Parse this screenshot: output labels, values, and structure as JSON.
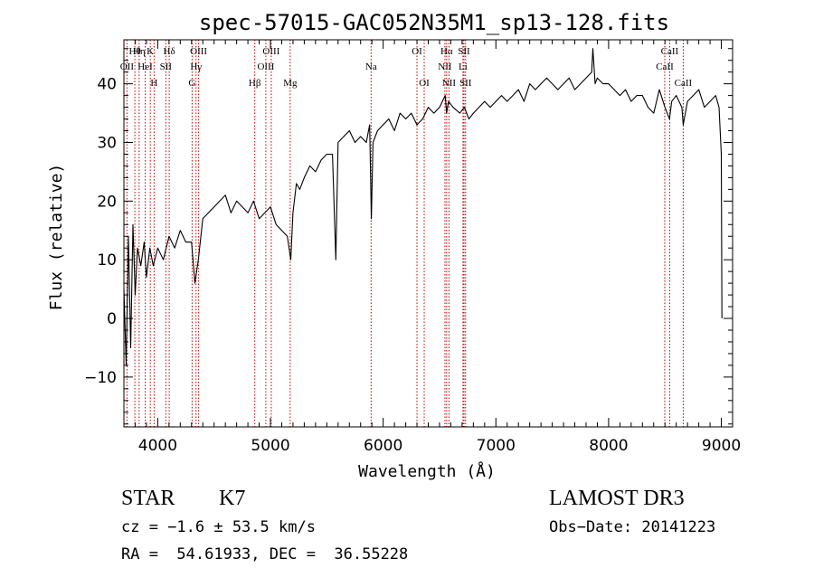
{
  "chart_data": {
    "type": "line",
    "title": "spec-57015-GAC052N35M1_sp13-128.fits",
    "xlabel": "Wavelength (Å)",
    "ylabel": "Flux (relative)",
    "xlim": [
      3700,
      9100
    ],
    "ylim": [
      -18.5,
      47.5
    ],
    "xticks": [
      4000,
      5000,
      6000,
      7000,
      8000,
      9000
    ],
    "yticks": [
      -10,
      0,
      10,
      20,
      30,
      40
    ],
    "x_minor_step": 100,
    "y_minor_step": 2,
    "grid": false,
    "series": [
      {
        "name": "flux",
        "x": [
          3700,
          3720,
          3740,
          3760,
          3780,
          3800,
          3820,
          3850,
          3880,
          3900,
          3930,
          3960,
          4000,
          4050,
          4100,
          4150,
          4200,
          4250,
          4300,
          4330,
          4360,
          4400,
          4450,
          4500,
          4550,
          4600,
          4650,
          4700,
          4750,
          4800,
          4850,
          4900,
          4950,
          5000,
          5050,
          5100,
          5150,
          5180,
          5200,
          5230,
          5260,
          5300,
          5350,
          5400,
          5450,
          5500,
          5550,
          5580,
          5600,
          5650,
          5700,
          5750,
          5800,
          5850,
          5880,
          5895,
          5910,
          5950,
          6000,
          6050,
          6100,
          6150,
          6200,
          6250,
          6300,
          6350,
          6400,
          6450,
          6500,
          6550,
          6563,
          6580,
          6620,
          6680,
          6720,
          6760,
          6800,
          6850,
          6900,
          6950,
          7000,
          7050,
          7100,
          7150,
          7200,
          7250,
          7300,
          7350,
          7400,
          7450,
          7500,
          7550,
          7600,
          7650,
          7700,
          7750,
          7800,
          7850,
          7860,
          7880,
          7900,
          7950,
          8000,
          8050,
          8100,
          8150,
          8200,
          8250,
          8300,
          8350,
          8400,
          8450,
          8500,
          8540,
          8560,
          8600,
          8650,
          8662,
          8700,
          8750,
          8800,
          8850,
          8900,
          8950,
          8980,
          9000,
          9005
        ],
        "values": [
          5,
          -8,
          14,
          -5,
          16,
          4,
          12,
          9,
          13,
          7,
          12,
          9,
          12,
          10,
          14,
          12,
          15,
          13,
          13,
          6,
          10,
          17,
          18,
          19,
          20,
          21,
          18,
          20,
          19,
          18,
          20,
          17,
          18,
          19,
          16,
          15,
          14,
          10,
          18,
          23,
          22,
          24,
          26,
          25,
          27,
          28,
          28,
          10,
          30,
          31,
          32,
          30,
          31,
          30,
          33,
          17,
          30,
          32,
          33,
          34,
          32,
          35,
          34,
          35,
          33,
          34,
          36,
          35,
          36,
          38,
          35,
          37,
          36,
          35,
          36,
          34,
          35,
          36,
          37,
          36,
          37,
          38,
          37,
          38,
          39,
          37,
          40,
          39,
          40,
          41,
          40,
          39,
          40,
          41,
          39,
          40,
          41,
          42,
          46,
          40,
          41,
          40,
          40,
          39,
          38,
          39,
          37,
          38,
          38,
          36,
          35,
          39,
          36,
          34,
          37,
          38,
          36,
          33,
          37,
          38,
          39,
          36,
          37,
          38,
          36,
          28,
          0
        ]
      }
    ],
    "emission_lines": [
      {
        "name": "Hθ",
        "x": 3797,
        "row": 0
      },
      {
        "name": "OII",
        "x": 3727,
        "row": 1
      },
      {
        "name": "Hη",
        "x": 3835,
        "row": 0
      },
      {
        "name": "K",
        "x": 3934,
        "row": 0
      },
      {
        "name": "H",
        "x": 3968,
        "row": 2
      },
      {
        "name": "HeI",
        "x": 3889,
        "row": 1
      },
      {
        "name": "SII",
        "x": 4072,
        "row": 1
      },
      {
        "name": "Hδ",
        "x": 4102,
        "row": 0
      },
      {
        "name": "OIII",
        "x": 4363,
        "row": 0
      },
      {
        "name": "Hγ",
        "x": 4340,
        "row": 1
      },
      {
        "name": "G",
        "x": 4305,
        "row": 2
      },
      {
        "name": "Hβ",
        "x": 4861,
        "row": 2
      },
      {
        "name": "OIII",
        "x": 4959,
        "row": 1
      },
      {
        "name": "OIII",
        "x": 5007,
        "row": 0
      },
      {
        "name": "Mg",
        "x": 5175,
        "row": 2
      },
      {
        "name": "Na",
        "x": 5893,
        "row": 1
      },
      {
        "name": "OI",
        "x": 6300,
        "row": 0
      },
      {
        "name": "OI",
        "x": 6364,
        "row": 2
      },
      {
        "name": "Hα",
        "x": 6563,
        "row": 0
      },
      {
        "name": "NII",
        "x": 6548,
        "row": 1
      },
      {
        "name": "NII",
        "x": 6584,
        "row": 2
      },
      {
        "name": "SII",
        "x": 6717,
        "row": 0
      },
      {
        "name": "Li",
        "x": 6708,
        "row": 1
      },
      {
        "name": "SII",
        "x": 6731,
        "row": 2
      },
      {
        "name": "CaII",
        "x": 8498,
        "row": 1
      },
      {
        "name": "CaII",
        "x": 8542,
        "row": 0
      },
      {
        "name": "CaII",
        "x": 8662,
        "row": 2
      }
    ]
  },
  "info": {
    "class": "STAR",
    "subclass": "K7",
    "survey": "LAMOST DR3",
    "cz": "cz = −1.6 ± 53.5 km/s",
    "obs_date": "Obs−Date: 20141223",
    "radec": "RA =  54.61933, DEC =  36.55228"
  }
}
